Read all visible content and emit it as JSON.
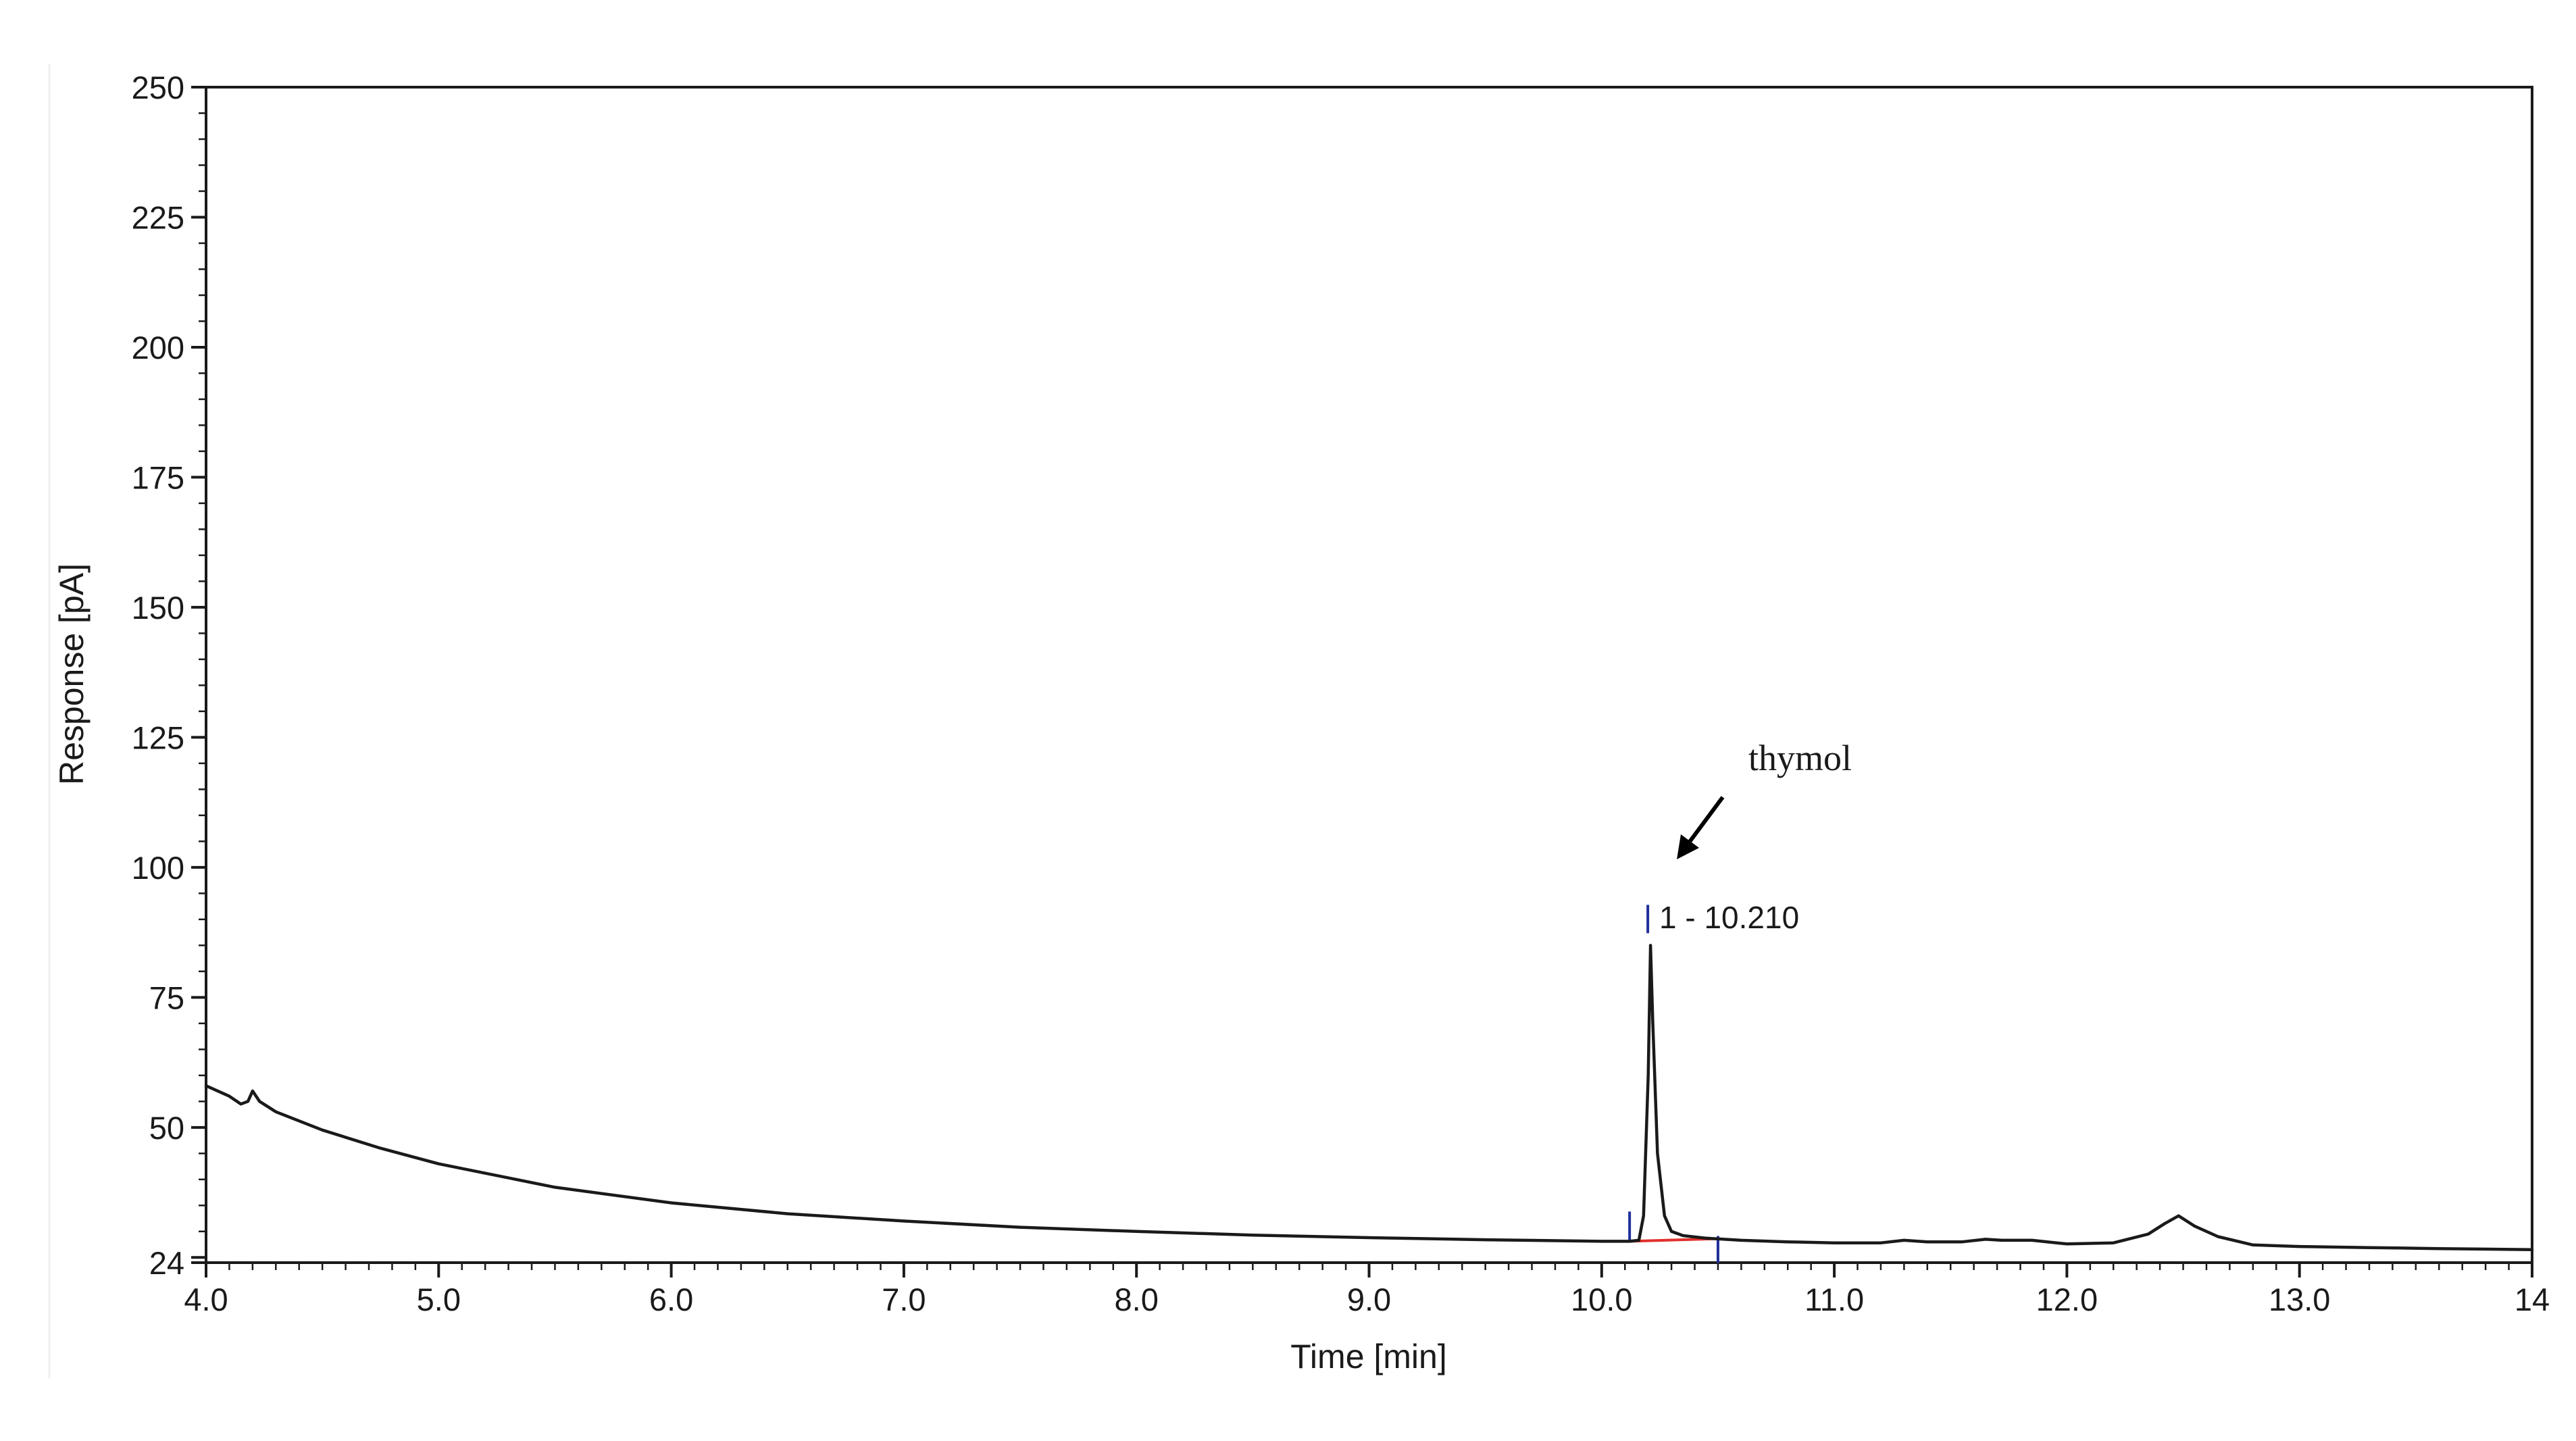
{
  "chart_data": {
    "type": "line",
    "title": "",
    "xlabel": "Time [min]",
    "ylabel": "Response [pA]",
    "xlim": [
      4.0,
      14.0
    ],
    "ylim": [
      24,
      250
    ],
    "x_ticks": [
      4.0,
      5.0,
      6.0,
      7.0,
      8.0,
      9.0,
      10.0,
      11.0,
      12.0,
      13.0,
      14.0
    ],
    "x_tick_labels": [
      "4.0",
      "5.0",
      "6.0",
      "7.0",
      "8.0",
      "9.0",
      "10.0",
      "11.0",
      "12.0",
      "13.0",
      "14"
    ],
    "y_ticks": [
      24,
      50,
      75,
      100,
      125,
      150,
      175,
      200,
      225,
      250
    ],
    "y_tick_labels": [
      "24",
      "50",
      "75",
      "100",
      "125",
      "150",
      "175",
      "200",
      "225",
      "250"
    ],
    "grid": false,
    "legend": "none",
    "series": [
      {
        "color": "#1a1a1a",
        "x": [
          4.0,
          4.1,
          4.15,
          4.18,
          4.2,
          4.23,
          4.3,
          4.5,
          4.75,
          5.0,
          5.5,
          6.0,
          6.5,
          7.0,
          7.5,
          8.0,
          8.5,
          9.0,
          9.5,
          10.0,
          10.12,
          10.16,
          10.18,
          10.2,
          10.21,
          10.22,
          10.24,
          10.27,
          10.3,
          10.35,
          10.45,
          10.6,
          10.8,
          11.0,
          11.2,
          11.3,
          11.4,
          11.55,
          11.65,
          11.72,
          11.85,
          12.0,
          12.2,
          12.35,
          12.42,
          12.48,
          12.55,
          12.65,
          12.8,
          13.0,
          13.3,
          13.6,
          14.0
        ],
        "y": [
          58,
          56,
          54.5,
          55,
          57,
          55,
          53,
          49.5,
          46,
          43,
          38.5,
          35.5,
          33.4,
          32,
          30.8,
          30,
          29.3,
          28.8,
          28.4,
          28.1,
          28.1,
          28.3,
          33,
          60,
          85,
          70,
          45,
          33,
          30,
          29.2,
          28.7,
          28.3,
          28,
          27.8,
          27.8,
          28.3,
          28,
          28,
          28.5,
          28.3,
          28.3,
          27.6,
          27.8,
          29.5,
          31.5,
          33,
          31,
          29,
          27.4,
          27.1,
          26.9,
          26.7,
          26.5
        ]
      }
    ],
    "peak_label": "1 - 10.210",
    "annotations": [
      {
        "text": "thymol",
        "x": 10.34,
        "y": 114
      }
    ],
    "integration": {
      "baseline_color": "#e0302c",
      "marker_color": "#1f2f9a",
      "start": {
        "x": 10.12,
        "y": 28.1
      },
      "end": {
        "x": 10.5,
        "y": 28.6
      },
      "apex": {
        "x": 10.21,
        "y": 85
      }
    }
  }
}
